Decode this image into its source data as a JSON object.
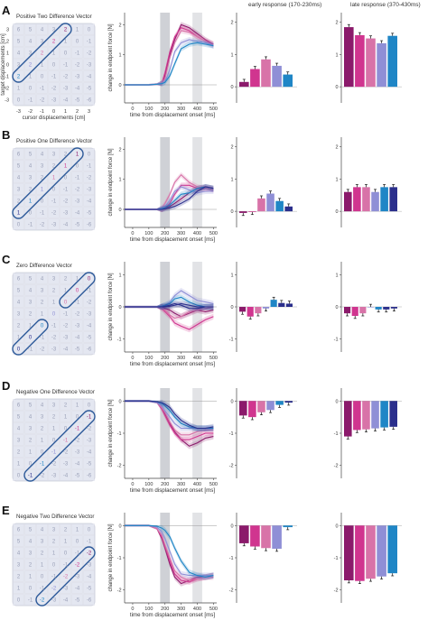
{
  "columns": {
    "early_title": "early response (170-230ms)",
    "late_title": "late response (370-430ms)"
  },
  "colors": [
    "#8b1a6b",
    "#d0358f",
    "#d873a8",
    "#8f8fd6",
    "#1f86c6",
    "#2b2f8c"
  ],
  "matrix_values": [
    [
      6,
      5,
      4,
      3,
      2,
      1,
      0
    ],
    [
      5,
      4,
      3,
      2,
      1,
      0,
      -1
    ],
    [
      4,
      3,
      2,
      1,
      0,
      -1,
      -2
    ],
    [
      3,
      2,
      1,
      0,
      -1,
      -2,
      -3
    ],
    [
      2,
      1,
      0,
      -1,
      -2,
      -3,
      -4
    ],
    [
      1,
      0,
      -1,
      -2,
      -3,
      -4,
      -5
    ],
    [
      0,
      -1,
      -2,
      -3,
      -4,
      -5,
      -6
    ]
  ],
  "matrix_axes": {
    "ylabel": "target displacements [cm]",
    "xlabel": "cursor displacements [cm]",
    "ticks": [
      "-3",
      "-2",
      "-1",
      "0",
      "1",
      "2",
      "3"
    ],
    "yticks": [
      "3",
      "2",
      "1",
      "0",
      "-1",
      "-2",
      "-3"
    ]
  },
  "panels": [
    {
      "letter": "A",
      "title": "Positive Two Difference Vector",
      "diff": 2
    },
    {
      "letter": "B",
      "title": "Positive One Difference Vector",
      "diff": 1
    },
    {
      "letter": "C",
      "title": "Zero Difference Vector",
      "diff": 0
    },
    {
      "letter": "D",
      "title": "Negative One Difference Vector",
      "diff": -1
    },
    {
      "letter": "E",
      "title": "Negative Two Difference Vector",
      "diff": -2
    }
  ],
  "timeseries_axes": {
    "ylabel": "change in endpoint force [N]",
    "xlabel": "time from displacement onset [ms]",
    "xticks": [
      "0",
      "100",
      "200",
      "300",
      "400",
      "500"
    ],
    "xlim": [
      -50,
      520
    ],
    "early_window": [
      170,
      230
    ],
    "late_window": [
      370,
      430
    ]
  },
  "chart_data": [
    {
      "type": "bar",
      "panel": "A",
      "window": "early",
      "ylim": [
        -0.5,
        2.3
      ],
      "yticks": [
        "0",
        "1",
        "2"
      ],
      "values": [
        0.15,
        0.55,
        0.85,
        0.65,
        0.38
      ]
    },
    {
      "type": "bar",
      "panel": "A",
      "window": "late",
      "ylim": [
        -0.5,
        2.3
      ],
      "yticks": [
        "0",
        "1",
        "2"
      ],
      "values": [
        1.85,
        1.6,
        1.5,
        1.35,
        1.58
      ]
    },
    {
      "type": "bar",
      "panel": "B",
      "window": "early",
      "ylim": [
        -0.5,
        2.3
      ],
      "yticks": [
        "0",
        "1",
        "2"
      ],
      "values": [
        -0.05,
        -0.02,
        0.4,
        0.55,
        0.32,
        0.15
      ]
    },
    {
      "type": "bar",
      "panel": "B",
      "window": "late",
      "ylim": [
        -0.5,
        2.3
      ],
      "yticks": [
        "0",
        "1",
        "2"
      ],
      "values": [
        0.6,
        0.75,
        0.75,
        0.6,
        0.75,
        0.75
      ]
    },
    {
      "type": "bar",
      "panel": "C",
      "window": "early",
      "ylim": [
        -1.4,
        1.4
      ],
      "yticks": [
        "1",
        "0",
        "-1"
      ],
      "values": [
        -0.15,
        -0.3,
        -0.2,
        -0.05,
        0.22,
        0.12,
        0.1
      ]
    },
    {
      "type": "bar",
      "panel": "C",
      "window": "late",
      "ylim": [
        -1.4,
        1.4
      ],
      "yticks": [
        "1",
        "0",
        "-1"
      ],
      "values": [
        -0.2,
        -0.28,
        -0.2,
        0.0,
        -0.08,
        -0.08,
        -0.05
      ]
    },
    {
      "type": "bar",
      "panel": "D",
      "window": "early",
      "ylim": [
        -2.4,
        0.4
      ],
      "yticks": [
        "0",
        "-1",
        "-2"
      ],
      "values": [
        -0.45,
        -0.5,
        -0.35,
        -0.28,
        -0.12,
        -0.05
      ]
    },
    {
      "type": "bar",
      "panel": "D",
      "window": "late",
      "ylim": [
        -2.4,
        0.4
      ],
      "yticks": [
        "0",
        "-1",
        "-2"
      ],
      "values": [
        -1.1,
        -0.9,
        -0.88,
        -0.85,
        -0.82,
        -0.8
      ]
    },
    {
      "type": "bar",
      "panel": "E",
      "window": "early",
      "ylim": [
        -2.4,
        0.4
      ],
      "yticks": [
        "0",
        "-1",
        "-2"
      ],
      "values": [
        -0.55,
        -0.65,
        -0.7,
        -0.72,
        -0.05
      ]
    },
    {
      "type": "bar",
      "panel": "E",
      "window": "late",
      "ylim": [
        -2.4,
        0.4
      ],
      "yticks": [
        "0",
        "-1",
        "-2"
      ],
      "values": [
        -1.7,
        -1.72,
        -1.65,
        -1.58,
        -1.48
      ]
    },
    {
      "type": "line",
      "panel": "A",
      "ylim": [
        -0.6,
        2.4
      ],
      "yticks": [
        "0",
        "1",
        "2"
      ],
      "x": [
        -50,
        0,
        100,
        150,
        180,
        200,
        230,
        260,
        300,
        350,
        400,
        450,
        500
      ],
      "series": [
        {
          "values": [
            0,
            0,
            0,
            0.02,
            0.05,
            0.3,
            1.0,
            1.5,
            2.0,
            1.9,
            1.7,
            1.5,
            1.35
          ]
        },
        {
          "values": [
            0,
            0,
            0,
            0.02,
            0.05,
            0.4,
            1.1,
            1.6,
            1.9,
            1.8,
            1.6,
            1.45,
            1.35
          ]
        },
        {
          "values": [
            0,
            0,
            0,
            0.02,
            0.05,
            0.2,
            0.9,
            1.4,
            1.8,
            1.75,
            1.6,
            1.45,
            1.3
          ]
        },
        {
          "values": [
            0,
            0,
            0,
            0.02,
            0.05,
            0.1,
            0.5,
            1.1,
            1.4,
            1.5,
            1.45,
            1.4,
            1.3
          ]
        },
        {
          "values": [
            0,
            0,
            0,
            0.02,
            0.04,
            0.08,
            0.3,
            0.7,
            1.2,
            1.35,
            1.4,
            1.35,
            1.3
          ]
        }
      ]
    },
    {
      "type": "line",
      "panel": "B",
      "ylim": [
        -0.6,
        2.4
      ],
      "yticks": [
        "0",
        "1",
        "2"
      ],
      "x": [
        -50,
        0,
        100,
        150,
        180,
        200,
        230,
        260,
        300,
        350,
        400,
        450,
        500
      ],
      "series": [
        {
          "values": [
            0,
            0,
            0,
            0,
            0,
            0.05,
            0.1,
            0.2,
            0.35,
            0.55,
            0.7,
            0.75,
            0.7
          ]
        },
        {
          "values": [
            0,
            0,
            0,
            0,
            0,
            0.05,
            0.2,
            0.5,
            0.8,
            0.8,
            0.7,
            0.7,
            0.65
          ]
        },
        {
          "values": [
            0,
            0,
            0,
            0,
            0.05,
            0.2,
            0.5,
            0.9,
            1.15,
            0.9,
            0.75,
            0.7,
            0.65
          ]
        },
        {
          "values": [
            0,
            0,
            0,
            0,
            0.05,
            0.1,
            0.3,
            0.6,
            0.75,
            0.65,
            0.55,
            0.6,
            0.6
          ]
        },
        {
          "values": [
            0,
            0,
            0,
            0,
            0.02,
            0.05,
            0.15,
            0.3,
            0.5,
            0.55,
            0.7,
            0.75,
            0.7
          ]
        },
        {
          "values": [
            0,
            0,
            0,
            0,
            0,
            0.02,
            0.05,
            0.1,
            0.2,
            0.35,
            0.6,
            0.75,
            0.7
          ]
        }
      ]
    },
    {
      "type": "line",
      "panel": "C",
      "ylim": [
        -1.4,
        1.4
      ],
      "yticks": [
        "1",
        "0",
        "-1"
      ],
      "x": [
        -50,
        0,
        100,
        150,
        180,
        200,
        230,
        260,
        300,
        350,
        400,
        450,
        500
      ],
      "series": [
        {
          "values": [
            0,
            0,
            0,
            0,
            0,
            -0.05,
            -0.1,
            -0.2,
            -0.3,
            -0.2,
            -0.1,
            -0.15,
            -0.1
          ]
        },
        {
          "values": [
            0,
            0,
            0,
            0,
            -0.05,
            -0.15,
            -0.3,
            -0.5,
            -0.6,
            -0.7,
            -0.55,
            -0.4,
            -0.3
          ]
        },
        {
          "values": [
            0,
            0,
            0,
            0,
            -0.05,
            -0.1,
            -0.25,
            -0.35,
            -0.3,
            -0.15,
            -0.1,
            -0.05,
            0
          ]
        },
        {
          "values": [
            0,
            0,
            0,
            0,
            0.02,
            0.05,
            0.15,
            0.35,
            0.5,
            0.35,
            0.2,
            0.15,
            0.1
          ]
        },
        {
          "values": [
            0,
            0,
            0,
            0,
            0.02,
            0.05,
            0.1,
            0.25,
            0.3,
            0.15,
            0.05,
            0,
            0
          ]
        },
        {
          "values": [
            0,
            0,
            0,
            0,
            0,
            0.02,
            0.05,
            0.1,
            0.05,
            -0.05,
            -0.05,
            0,
            0
          ]
        },
        {
          "values": [
            0,
            0,
            0,
            0,
            0,
            0,
            0.02,
            0.05,
            0.1,
            0.05,
            0,
            0,
            0
          ]
        }
      ]
    },
    {
      "type": "line",
      "panel": "D",
      "ylim": [
        -2.4,
        0.4
      ],
      "yticks": [
        "0",
        "-1",
        "-2"
      ],
      "x": [
        -50,
        0,
        100,
        150,
        180,
        200,
        230,
        260,
        300,
        350,
        400,
        450,
        500
      ],
      "series": [
        {
          "values": [
            0,
            0,
            0,
            -0.05,
            -0.2,
            -0.4,
            -0.7,
            -0.95,
            -1.2,
            -1.4,
            -1.3,
            -1.15,
            -1.1
          ]
        },
        {
          "values": [
            0,
            0,
            0,
            -0.05,
            -0.25,
            -0.45,
            -0.75,
            -1.0,
            -1.2,
            -1.2,
            -1.1,
            -1.0,
            -1.0
          ]
        },
        {
          "values": [
            0,
            0,
            0,
            -0.05,
            -0.2,
            -0.35,
            -0.65,
            -0.9,
            -1.05,
            -1.05,
            -0.95,
            -0.9,
            -0.9
          ]
        },
        {
          "values": [
            0,
            0,
            0,
            -0.05,
            -0.15,
            -0.3,
            -0.5,
            -0.7,
            -0.85,
            -0.85,
            -0.85,
            -0.85,
            -0.85
          ]
        },
        {
          "values": [
            0,
            0,
            0,
            -0.02,
            -0.08,
            -0.15,
            -0.3,
            -0.5,
            -0.7,
            -0.8,
            -0.85,
            -0.85,
            -0.85
          ]
        },
        {
          "values": [
            0,
            0,
            0,
            -0.02,
            -0.05,
            -0.1,
            -0.2,
            -0.4,
            -0.6,
            -0.75,
            -0.85,
            -0.85,
            -0.8
          ]
        }
      ]
    },
    {
      "type": "line",
      "panel": "E",
      "ylim": [
        -2.4,
        0.4
      ],
      "yticks": [
        "0",
        "-1",
        "-2"
      ],
      "x": [
        -50,
        0,
        100,
        150,
        180,
        200,
        230,
        260,
        300,
        350,
        400,
        450,
        500
      ],
      "series": [
        {
          "values": [
            0,
            0,
            0,
            -0.1,
            -0.4,
            -0.7,
            -1.2,
            -1.6,
            -1.8,
            -1.7,
            -1.6,
            -1.6,
            -1.55
          ]
        },
        {
          "values": [
            0,
            0,
            0,
            -0.1,
            -0.35,
            -0.65,
            -1.1,
            -1.5,
            -1.7,
            -1.75,
            -1.65,
            -1.6,
            -1.55
          ]
        },
        {
          "values": [
            0,
            0,
            0,
            -0.1,
            -0.3,
            -0.6,
            -1.0,
            -1.4,
            -1.6,
            -1.7,
            -1.65,
            -1.6,
            -1.6
          ]
        },
        {
          "values": [
            0,
            0,
            0,
            -0.05,
            -0.2,
            -0.4,
            -0.8,
            -1.2,
            -1.5,
            -1.55,
            -1.55,
            -1.55,
            -1.55
          ]
        },
        {
          "values": [
            0,
            0,
            0,
            -0.02,
            -0.08,
            -0.15,
            -0.35,
            -0.7,
            -1.1,
            -1.45,
            -1.55,
            -1.6,
            -1.55
          ]
        }
      ]
    }
  ]
}
